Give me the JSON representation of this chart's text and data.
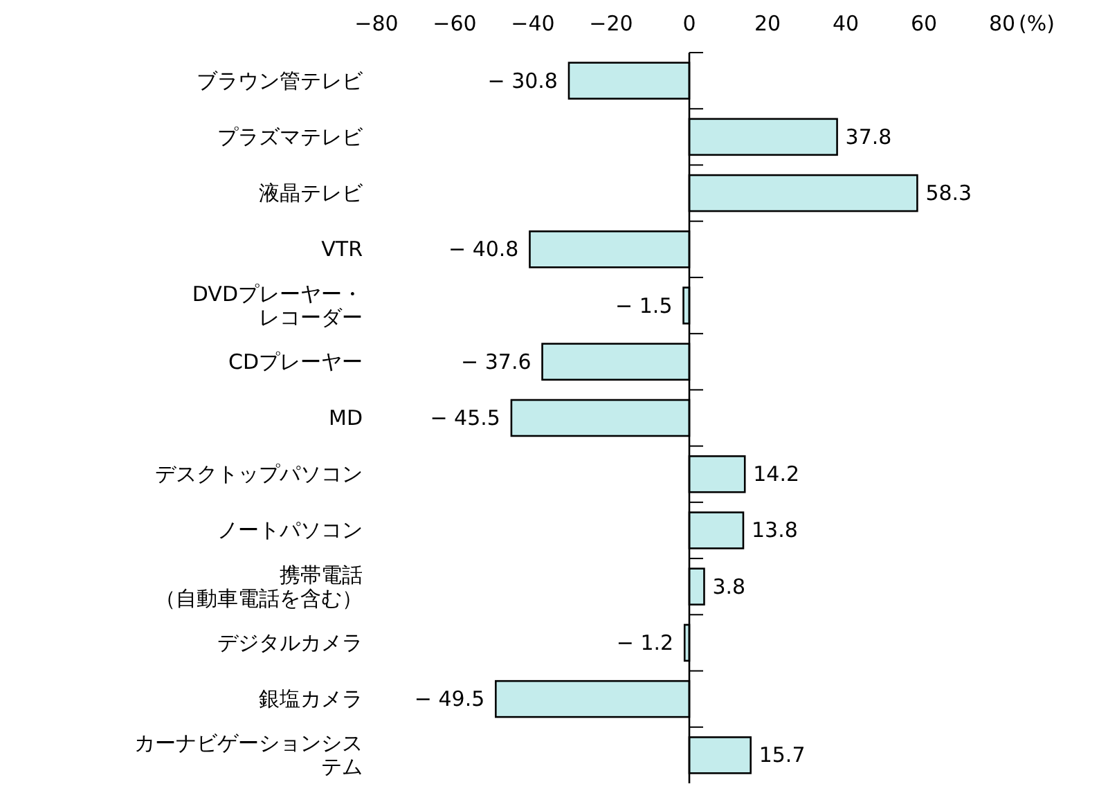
{
  "chart_data": {
    "type": "bar",
    "orientation": "horizontal",
    "xlabel": "(%)",
    "color": "#c4ecec",
    "categories": [
      "ブラウン管テレビ",
      "プラズマテレビ",
      "液晶テレビ",
      "VTR",
      "DVDプレーヤー・レコーダー",
      "CDプレーヤー",
      "MD",
      "デスクトップパソコン",
      "ノートパソコン",
      "携帯電話（自動車電話を含む）",
      "デジタルカメラ",
      "銀塩カメラ",
      "カーナビゲーションシステム"
    ],
    "values": [
      -30.8,
      37.8,
      58.3,
      -40.8,
      -1.5,
      -37.6,
      -45.5,
      14.2,
      13.8,
      3.8,
      -1.2,
      -49.5,
      15.7
    ],
    "value_labels": [
      "− 30.8",
      "37.8",
      "58.3",
      "− 40.8",
      "− 1.5",
      "− 37.6",
      "− 45.5",
      "14.2",
      "13.8",
      "3.8",
      "− 1.2",
      "− 49.5",
      "15.7"
    ],
    "xlim": [
      -80,
      80
    ],
    "xticks": [
      {
        "value": -80,
        "label": "−80"
      },
      {
        "value": -60,
        "label": "−60"
      },
      {
        "value": -40,
        "label": "−40"
      },
      {
        "value": -20,
        "label": "−20"
      },
      0,
      20,
      40,
      60,
      80
    ]
  }
}
